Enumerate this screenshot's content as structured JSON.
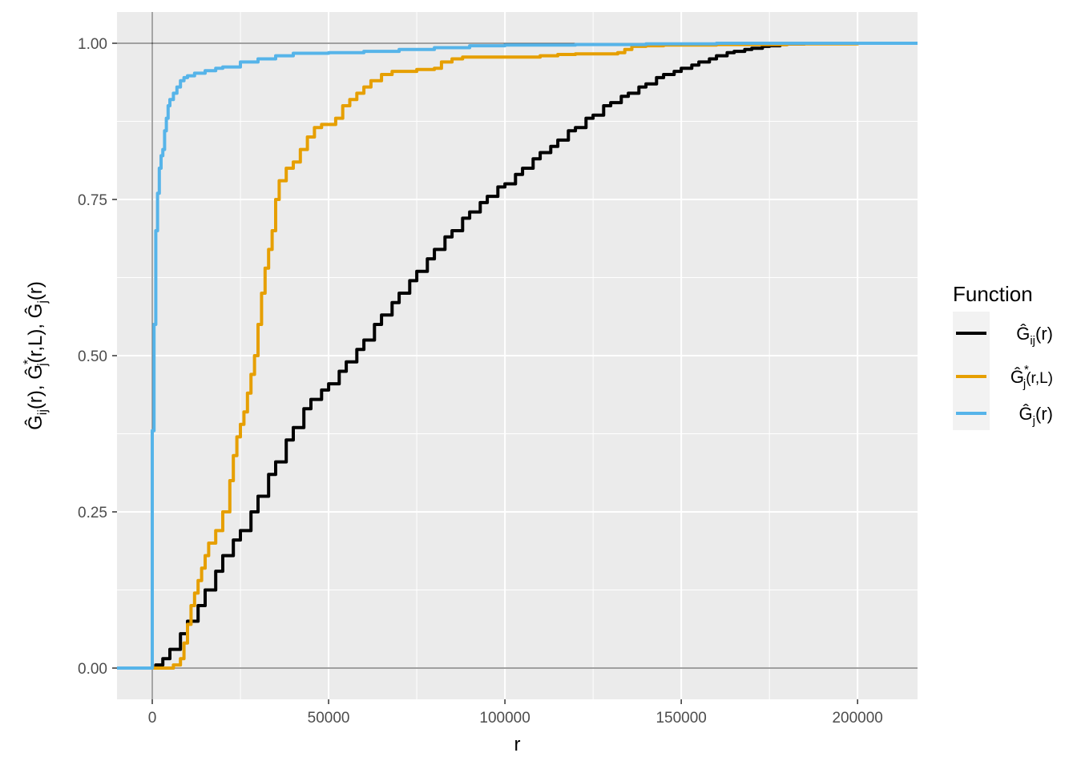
{
  "chart_data": {
    "type": "line",
    "xlabel": "r",
    "ylabel": "Ĝ_ij(r), Ĝ*_j(r,L), Ĝ_j(r)",
    "xlim": [
      -10000,
      217000
    ],
    "ylim": [
      -0.05,
      1.05
    ],
    "x_ticks": [
      0,
      50000,
      100000,
      150000,
      200000
    ],
    "x_tick_labels": [
      "0",
      "50000",
      "100000",
      "150000",
      "200000"
    ],
    "y_ticks": [
      0,
      0.25,
      0.5,
      0.75,
      1.0
    ],
    "y_tick_labels": [
      "0.00",
      "0.25",
      "0.50",
      "0.75",
      "1.00"
    ],
    "grid": true,
    "background": "#ebebeb",
    "reference_lines": {
      "x": 0,
      "y": [
        0,
        1
      ]
    },
    "legend": {
      "title": "Function",
      "position": "right",
      "entries": [
        {
          "base": "G",
          "sub": "ij",
          "sup": "",
          "args": "(r)",
          "color": "#000000"
        },
        {
          "base": "G",
          "sub": "j",
          "sup": "*",
          "args": "(r,L)",
          "color": "#E69F00"
        },
        {
          "base": "G",
          "sub": "j",
          "sup": "",
          "args": "(r)",
          "color": "#56B4E9"
        }
      ]
    },
    "series": [
      {
        "key": "Gij",
        "color": "#000000",
        "x": [
          -10000,
          0,
          1000,
          3000,
          5000,
          8000,
          10000,
          13000,
          15000,
          18000,
          20000,
          23000,
          25000,
          28000,
          30000,
          33000,
          35000,
          38000,
          40000,
          43000,
          45000,
          48000,
          50000,
          53000,
          55000,
          58000,
          60000,
          63000,
          65000,
          68000,
          70000,
          73000,
          75000,
          78000,
          80000,
          83000,
          85000,
          88000,
          90000,
          93000,
          95000,
          98000,
          100000,
          103000,
          105000,
          108000,
          110000,
          113000,
          115000,
          118000,
          120000,
          123000,
          125000,
          128000,
          130000,
          133000,
          135000,
          138000,
          140000,
          143000,
          145000,
          148000,
          150000,
          153000,
          155000,
          158000,
          160000,
          163000,
          165000,
          168000,
          170000,
          173000,
          175000,
          178000,
          180000,
          185000,
          190000,
          195000,
          200000,
          205000,
          210000,
          217000
        ],
        "y": [
          0,
          0,
          0.005,
          0.015,
          0.03,
          0.055,
          0.075,
          0.1,
          0.125,
          0.155,
          0.18,
          0.205,
          0.22,
          0.25,
          0.275,
          0.31,
          0.33,
          0.365,
          0.385,
          0.415,
          0.43,
          0.445,
          0.455,
          0.475,
          0.49,
          0.51,
          0.525,
          0.55,
          0.565,
          0.585,
          0.6,
          0.62,
          0.635,
          0.655,
          0.67,
          0.69,
          0.7,
          0.72,
          0.73,
          0.745,
          0.755,
          0.77,
          0.775,
          0.79,
          0.8,
          0.815,
          0.825,
          0.835,
          0.845,
          0.86,
          0.865,
          0.88,
          0.885,
          0.9,
          0.905,
          0.915,
          0.92,
          0.93,
          0.935,
          0.945,
          0.95,
          0.955,
          0.96,
          0.965,
          0.97,
          0.975,
          0.98,
          0.985,
          0.987,
          0.99,
          0.992,
          0.995,
          0.996,
          0.998,
          0.999,
          1.0,
          1.0,
          1.0,
          1.0,
          1.0,
          1.0,
          1.0
        ]
      },
      {
        "key": "Gstar",
        "color": "#E69F00",
        "x": [
          -10000,
          0,
          3000,
          6000,
          8000,
          9000,
          10000,
          11000,
          12000,
          13000,
          14000,
          15000,
          16000,
          18000,
          20000,
          22000,
          23000,
          24000,
          25000,
          26000,
          27000,
          28000,
          29000,
          30000,
          31000,
          32000,
          33000,
          34000,
          35000,
          36000,
          38000,
          40000,
          42000,
          44000,
          46000,
          48000,
          50000,
          52000,
          54000,
          56000,
          58000,
          60000,
          62000,
          65000,
          68000,
          70000,
          75000,
          80000,
          82000,
          85000,
          88000,
          90000,
          95000,
          100000,
          110000,
          115000,
          120000,
          125000,
          130000,
          132000,
          134000,
          136000,
          140000,
          145000,
          150000,
          160000,
          170000,
          180000,
          190000,
          200000,
          205000,
          210000,
          217000
        ],
        "y": [
          0,
          0,
          0,
          0.005,
          0.015,
          0.04,
          0.07,
          0.1,
          0.12,
          0.14,
          0.16,
          0.18,
          0.2,
          0.22,
          0.25,
          0.3,
          0.34,
          0.37,
          0.39,
          0.41,
          0.44,
          0.47,
          0.5,
          0.55,
          0.6,
          0.64,
          0.67,
          0.7,
          0.75,
          0.78,
          0.8,
          0.81,
          0.83,
          0.85,
          0.865,
          0.87,
          0.87,
          0.88,
          0.9,
          0.91,
          0.92,
          0.93,
          0.94,
          0.95,
          0.955,
          0.955,
          0.958,
          0.96,
          0.97,
          0.975,
          0.978,
          0.978,
          0.978,
          0.978,
          0.98,
          0.982,
          0.983,
          0.983,
          0.983,
          0.985,
          0.99,
          0.995,
          0.996,
          0.997,
          0.997,
          0.998,
          0.998,
          0.999,
          0.999,
          1.0,
          1.0,
          1.0,
          1.0
        ]
      },
      {
        "key": "Gj",
        "color": "#56B4E9",
        "x": [
          -10000,
          0,
          0,
          500,
          1000,
          1500,
          2000,
          2500,
          3000,
          3500,
          4000,
          4500,
          5000,
          6000,
          7000,
          8000,
          9000,
          10000,
          12000,
          15000,
          18000,
          20000,
          25000,
          30000,
          35000,
          40000,
          50000,
          60000,
          70000,
          80000,
          90000,
          100000,
          120000,
          140000,
          160000,
          180000,
          200000,
          217000
        ],
        "y": [
          0,
          0,
          0.38,
          0.55,
          0.7,
          0.76,
          0.8,
          0.82,
          0.83,
          0.86,
          0.88,
          0.9,
          0.91,
          0.92,
          0.93,
          0.94,
          0.945,
          0.948,
          0.952,
          0.956,
          0.96,
          0.962,
          0.97,
          0.975,
          0.98,
          0.984,
          0.985,
          0.987,
          0.99,
          0.993,
          0.996,
          0.997,
          0.998,
          0.999,
          1.0,
          1.0,
          1.0,
          1.0
        ]
      }
    ]
  }
}
